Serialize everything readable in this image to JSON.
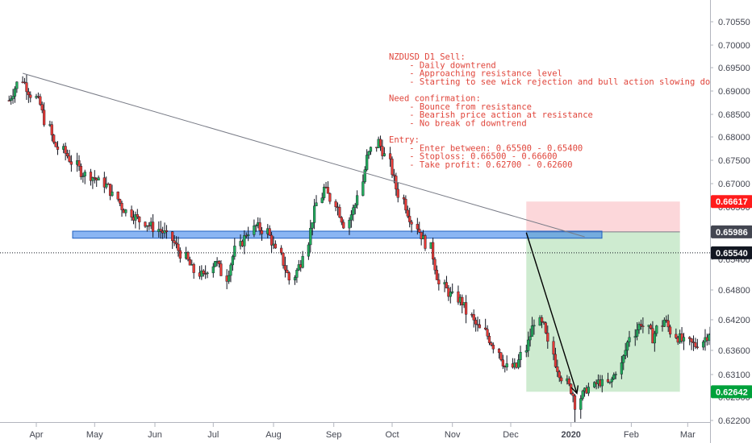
{
  "chart_data": {
    "type": "candlestick",
    "symbol_note_title": "NZDUSD D1 Sell:",
    "y_ticks": [
      "0.70550",
      "0.70000",
      "0.69500",
      "0.69000",
      "0.68500",
      "0.68000",
      "0.67500",
      "0.67000",
      "0.66500",
      "0.66000",
      "0.65400",
      "0.64800",
      "0.64200",
      "0.63600",
      "0.63100",
      "0.62500",
      "0.62200"
    ],
    "x_ticks": [
      "Apr",
      "May",
      "Jun",
      "Jul",
      "Aug",
      "Sep",
      "Oct",
      "Nov",
      "Dec",
      "2020",
      "Feb",
      "Mar"
    ],
    "price_tags": {
      "stop": {
        "label": "0.66617",
        "value": 0.66617,
        "color": "#ff1b1b"
      },
      "entry": {
        "label": "0.65986",
        "value": 0.65986,
        "color": "#434651"
      },
      "current": {
        "label": "0.65540",
        "value": 0.6554,
        "color": "#131722"
      },
      "target": {
        "label": "0.62642",
        "value": 0.62642,
        "color": "#00a13b"
      }
    },
    "resistance_zone": {
      "low": 0.6585,
      "high": 0.66,
      "color": "#5b9cf0"
    },
    "trendline": {
      "start": {
        "date": "2019-03-25",
        "price": 0.6938
      },
      "end": {
        "date": "2020-01-08",
        "price": 0.6588
      }
    },
    "position": {
      "side": "short",
      "entry": 0.65986,
      "stop": 0.66617,
      "target": 0.62642,
      "start_date": "2019-12-09",
      "end_date": "2020-02-26"
    },
    "projection_arrow": {
      "from": {
        "date": "2019-12-09",
        "price": 0.6597
      },
      "to": {
        "date": "2020-01-04",
        "price": 0.626
      }
    },
    "annotation_lines": [
      "NZDUSD D1 Sell:",
      "    - Daily downtrend",
      "    - Approaching resistance level",
      "    - Starting to see wick rejection and bull action slowing down",
      "",
      "Need confirmation:",
      "    - Bounce from resistance",
      "    - Bearish price action at resistance",
      "    - No break of downtrend",
      "",
      "Entry:",
      "    - Enter between: 0.65500 - 0.65400",
      "    - Stoploss: 0.66500 - 0.66600",
      "    - Take profit: 0.62700 - 0.62600"
    ],
    "price_path_anchors": [
      [
        0,
        0.688
      ],
      [
        5,
        0.6925
      ],
      [
        8,
        0.69
      ],
      [
        12,
        0.687
      ],
      [
        17,
        0.6785
      ],
      [
        22,
        0.676
      ],
      [
        27,
        0.6725
      ],
      [
        32,
        0.6712
      ],
      [
        37,
        0.6692
      ],
      [
        42,
        0.665
      ],
      [
        48,
        0.6625
      ],
      [
        53,
        0.661
      ],
      [
        58,
        0.6595
      ],
      [
        63,
        0.656
      ],
      [
        68,
        0.652
      ],
      [
        72,
        0.6505
      ],
      [
        76,
        0.654
      ],
      [
        80,
        0.6505
      ],
      [
        84,
        0.656
      ],
      [
        88,
        0.6595
      ],
      [
        91,
        0.661
      ],
      [
        95,
        0.66
      ],
      [
        100,
        0.6545
      ],
      [
        104,
        0.65
      ],
      [
        108,
        0.6535
      ],
      [
        112,
        0.6625
      ],
      [
        116,
        0.669
      ],
      [
        120,
        0.666
      ],
      [
        124,
        0.6615
      ],
      [
        128,
        0.6655
      ],
      [
        132,
        0.6755
      ],
      [
        136,
        0.679
      ],
      [
        139,
        0.676
      ],
      [
        143,
        0.669
      ],
      [
        147,
        0.664
      ],
      [
        151,
        0.66
      ],
      [
        155,
        0.6565
      ],
      [
        159,
        0.649
      ],
      [
        163,
        0.647
      ],
      [
        167,
        0.6455
      ],
      [
        171,
        0.6415
      ],
      [
        175,
        0.6395
      ],
      [
        179,
        0.637
      ],
      [
        183,
        0.6325
      ],
      [
        187,
        0.6325
      ],
      [
        191,
        0.6375
      ],
      [
        194,
        0.6418
      ],
      [
        197,
        0.6405
      ],
      [
        201,
        0.6335
      ],
      [
        205,
        0.629
      ],
      [
        209,
        0.6245
      ],
      [
        213,
        0.627
      ],
      [
        217,
        0.629
      ],
      [
        221,
        0.6285
      ],
      [
        225,
        0.633
      ],
      [
        229,
        0.639
      ],
      [
        233,
        0.6415
      ],
      [
        237,
        0.6385
      ],
      [
        241,
        0.642
      ],
      [
        245,
        0.639
      ],
      [
        249,
        0.6375
      ],
      [
        253,
        0.637
      ],
      [
        257,
        0.639
      ],
      [
        261,
        0.6415
      ],
      [
        265,
        0.642
      ],
      [
        268,
        0.644
      ],
      [
        270,
        0.65
      ],
      [
        273,
        0.6535
      ],
      [
        276,
        0.6554
      ]
    ]
  }
}
